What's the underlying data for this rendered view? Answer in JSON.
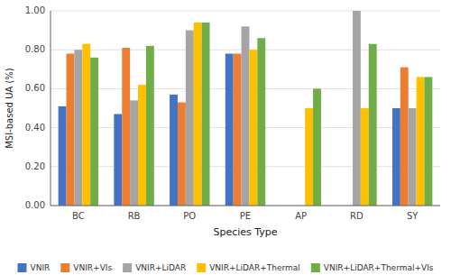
{
  "chart_data": {
    "type": "bar",
    "categories": [
      "BC",
      "RB",
      "PO",
      "PE",
      "AP",
      "RD",
      "SY"
    ],
    "series": [
      {
        "name": "VNIR",
        "color": "#4472C4",
        "values": [
          0.51,
          0.47,
          0.57,
          0.78,
          null,
          null,
          0.5
        ]
      },
      {
        "name": "VNIR+VIs",
        "color": "#ED7D31",
        "values": [
          0.78,
          0.81,
          0.53,
          0.78,
          null,
          null,
          0.71
        ]
      },
      {
        "name": "VNIR+LiDAR",
        "color": "#A5A5A5",
        "values": [
          0.8,
          0.54,
          0.9,
          0.92,
          null,
          1.0,
          0.5
        ]
      },
      {
        "name": "VNIR+LiDAR+Thermal",
        "color": "#FFC000",
        "values": [
          0.83,
          0.62,
          0.94,
          0.8,
          0.5,
          0.5,
          0.66
        ]
      },
      {
        "name": "VNIR+LiDAR+Thermal+VIs",
        "color": "#70AD47",
        "values": [
          0.76,
          0.82,
          0.94,
          0.86,
          0.6,
          0.83,
          0.66
        ]
      }
    ],
    "ylabel": "MSI-based UA (%)",
    "xlabel": "Species Type",
    "ylim": [
      0.0,
      1.0
    ],
    "yticks": [
      {
        "value": 0.0,
        "label": "0.00"
      },
      {
        "value": 0.2,
        "label": "0.20"
      },
      {
        "value": 0.4,
        "label": "0.40"
      },
      {
        "value": 0.6,
        "label": "0.60"
      },
      {
        "value": 0.8,
        "label": "0.80"
      },
      {
        "value": 1.0,
        "label": "1.00"
      }
    ],
    "grid": true,
    "legend": "bottom"
  }
}
